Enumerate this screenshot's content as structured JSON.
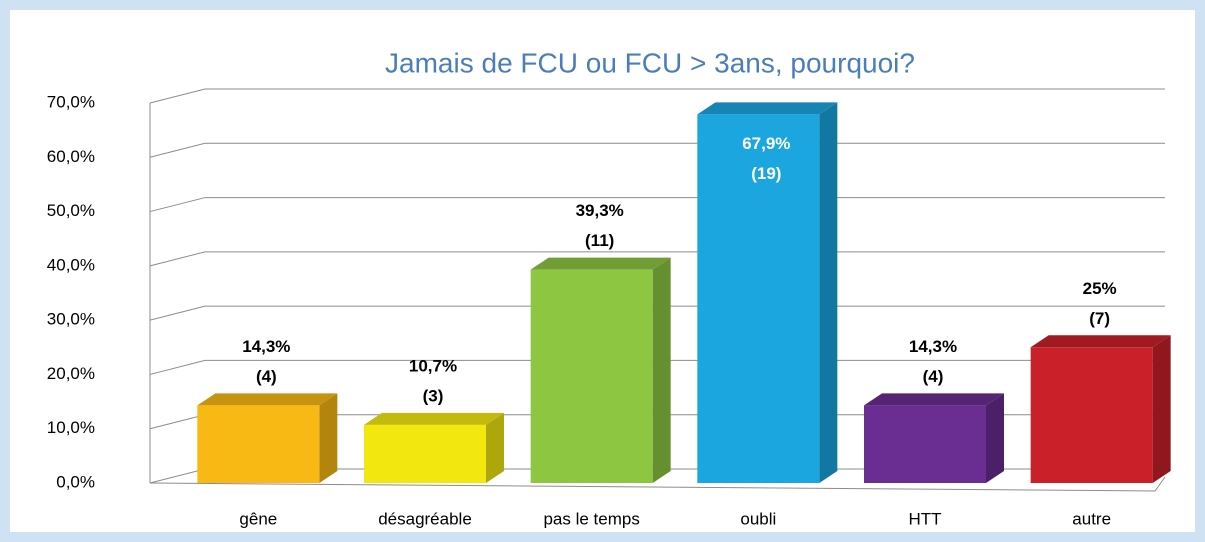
{
  "chart_data": {
    "type": "bar3d",
    "title": "Jamais de FCU ou FCU > 3ans, pourquoi?",
    "categories": [
      "gêne",
      "désagréable",
      "pas le temps",
      "oubli",
      "HTT",
      "autre"
    ],
    "values": [
      14.3,
      10.7,
      39.3,
      67.9,
      14.3,
      25
    ],
    "value_labels": [
      "14,3%",
      "10,7%",
      "39,3%",
      "67,9%",
      "14,3%",
      "25%"
    ],
    "counts": [
      4,
      3,
      11,
      19,
      4,
      7
    ],
    "count_labels": [
      "(4)",
      "(3)",
      "(11)",
      "(19)",
      "(4)",
      "(7)"
    ],
    "colors": [
      "#f9b914",
      "#f2e80f",
      "#8dc641",
      "#1ba6e0",
      "#6a2d91",
      "#c9202a"
    ],
    "ylim": [
      0,
      70
    ],
    "yticks": [
      {
        "value": 0,
        "label": "0,0%"
      },
      {
        "value": 10,
        "label": "10,0%"
      },
      {
        "value": 20,
        "label": "20,0%"
      },
      {
        "value": 30,
        "label": "30,0%"
      },
      {
        "value": 40,
        "label": "40,0%"
      },
      {
        "value": 50,
        "label": "50,0%"
      },
      {
        "value": 60,
        "label": "60,0%"
      },
      {
        "value": 70,
        "label": "70,0%"
      }
    ],
    "grid": true
  }
}
